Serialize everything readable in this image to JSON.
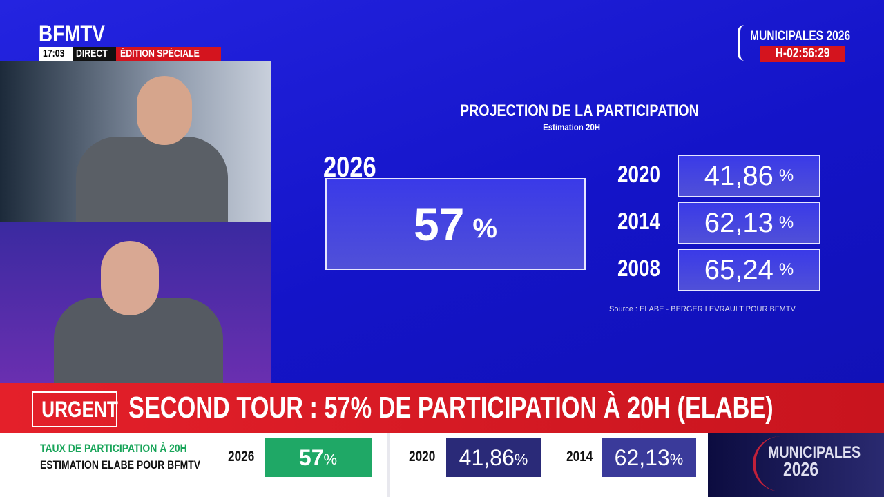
{
  "header": {
    "logo": "BFMTV",
    "time": "17:03",
    "live": "DIRECT",
    "edition": "ÉDITION SPÉCIALE"
  },
  "badge": {
    "title": "MUNICIPALES 2026",
    "countdown": "H-02:56:29"
  },
  "panel": {
    "title": "PROJECTION DE LA PARTICIPATION",
    "subtitle": "Estimation 20H",
    "main": {
      "year": "2026",
      "value": "57",
      "unit": "%"
    },
    "history": [
      {
        "year": "2020",
        "value": "41,86",
        "unit": "%"
      },
      {
        "year": "2014",
        "value": "62,13",
        "unit": "%"
      },
      {
        "year": "2008",
        "value": "65,24",
        "unit": "%"
      }
    ],
    "source": "Source :  ELABE - BERGER LEVRAULT POUR BFMTV"
  },
  "banner": {
    "tag": "URGENT",
    "headline": "SECOND TOUR : 57% DE PARTICIPATION À 20H (ELABE)"
  },
  "ticker": {
    "line1": "TAUX DE PARTICIPATION À 20H",
    "line2": "ESTIMATION ELABE POUR BFMTV",
    "items": [
      {
        "year": "2026",
        "value": "57",
        "unit": "%"
      },
      {
        "year": "2020",
        "value": "41,86",
        "unit": "%"
      },
      {
        "year": "2014",
        "value": "62,13",
        "unit": "%"
      }
    ]
  },
  "corner": {
    "line1": "MUNICIPALES",
    "line2": "2026"
  }
}
